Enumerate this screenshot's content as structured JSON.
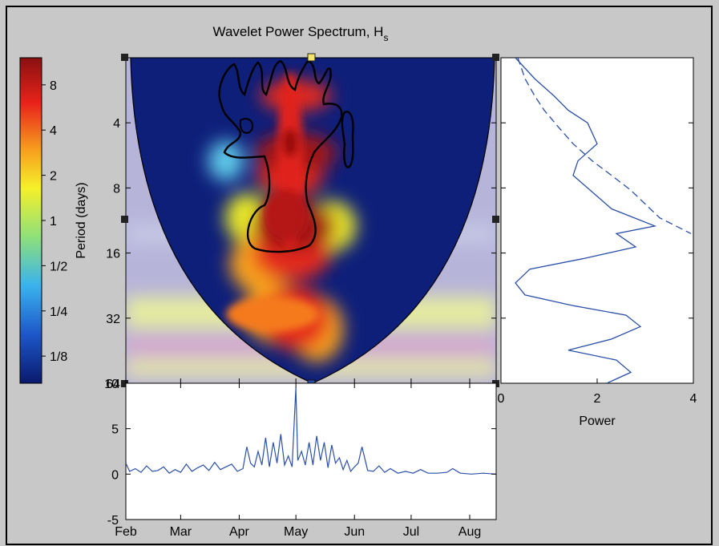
{
  "figure": {
    "title_main": "Wavelet Power Spectrum, H",
    "title_sub": "s",
    "background": "#c8c8c8",
    "line_color": "#2b4fa8"
  },
  "chart_data": [
    {
      "type": "heatmap",
      "title": "Wavelet Power Spectrum, Hs",
      "ylabel": "Period (days)",
      "y_scale": "log2",
      "y_reversed": true,
      "yticks": [
        "4",
        "8",
        "16",
        "32",
        "64"
      ],
      "ylim": [
        2,
        64
      ],
      "colorbar": {
        "scale": "log2",
        "ticks": [
          "8",
          "4",
          "2",
          "1",
          "1/2",
          "1/4",
          "1/8"
        ],
        "colors": [
          "#0a1a6e",
          "#1d56c8",
          "#3ab3ee",
          "#8fe07a",
          "#f6f02a",
          "#f79c1e",
          "#e8231b",
          "#8a1010"
        ]
      },
      "cone_of_influence": true,
      "significance_contour": true,
      "blobs": [
        {
          "date": "2008-04-29",
          "period": 16,
          "power": 7
        },
        {
          "date": "2008-04-30",
          "period": 12,
          "power": 9
        },
        {
          "date": "2008-05-01",
          "period": 5.5,
          "power": 8
        },
        {
          "date": "2008-05-01",
          "period": 3,
          "power": 5
        },
        {
          "date": "2008-04-28",
          "period": 7,
          "power": 4
        },
        {
          "date": "2008-04-20",
          "period": 30,
          "power": 3
        },
        {
          "date": "2008-05-01",
          "period": 32,
          "power": 4
        },
        {
          "date": "2008-05-12",
          "period": 36,
          "power": 2
        },
        {
          "date": "2008-04-10",
          "period": 18,
          "power": 2
        },
        {
          "date": "2008-05-20",
          "period": 12,
          "power": 1.5
        },
        {
          "date": "2008-04-05",
          "period": 11,
          "power": 1
        },
        {
          "date": "2008-03-25",
          "period": 6,
          "power": 0.5
        }
      ]
    },
    {
      "type": "line",
      "title": "",
      "xlabel": "Power",
      "ylabel": "",
      "xlim": [
        0,
        4
      ],
      "xticks": [
        "0",
        "2",
        "4"
      ],
      "y_scale": "log2",
      "series": [
        {
          "style": "solid",
          "x": [
            0.3,
            0.7,
            1.1,
            1.4,
            1.8,
            2.0,
            1.6,
            1.5,
            1.8,
            2.3,
            3.2,
            2.4,
            2.8,
            1.7,
            0.6,
            0.3,
            0.5,
            1.5,
            2.6,
            2.9,
            2.3,
            1.4,
            2.4,
            2.7,
            2.2
          ],
          "y": [
            2,
            2.5,
            3,
            3.5,
            4,
            5,
            6,
            7,
            8,
            10,
            12,
            13,
            15,
            17,
            19,
            22,
            25,
            28,
            31,
            35,
            40,
            45,
            50,
            57,
            64
          ]
        },
        {
          "style": "dashed",
          "x": [
            0.35,
            0.5,
            0.7,
            0.9,
            1.2,
            1.5,
            1.9,
            2.3,
            2.7,
            3.0,
            3.3,
            3.95
          ],
          "y": [
            2,
            2.5,
            3,
            3.5,
            4.2,
            5,
            6,
            7,
            8.2,
            9.5,
            11,
            13
          ]
        }
      ]
    },
    {
      "type": "line",
      "title": "",
      "xlabel": "",
      "ylabel": "",
      "ylim": [
        -5,
        10
      ],
      "yticks": [
        "10",
        "5",
        "0",
        "-5"
      ],
      "xticks": [
        "Feb",
        "Mar",
        "Apr",
        "May",
        "Jun",
        "Jul",
        "Aug"
      ],
      "xlim": [
        "2008-02-01",
        "2008-08-15"
      ],
      "series": [
        {
          "dates": [
            "2008-02-01",
            "2008-02-03",
            "2008-02-06",
            "2008-02-09",
            "2008-02-12",
            "2008-02-15",
            "2008-02-18",
            "2008-02-21",
            "2008-02-24",
            "2008-02-27",
            "2008-03-01",
            "2008-03-04",
            "2008-03-07",
            "2008-03-10",
            "2008-03-13",
            "2008-03-16",
            "2008-03-19",
            "2008-03-22",
            "2008-03-25",
            "2008-03-28",
            "2008-03-31",
            "2008-04-03",
            "2008-04-05",
            "2008-04-07",
            "2008-04-09",
            "2008-04-11",
            "2008-04-13",
            "2008-04-15",
            "2008-04-17",
            "2008-04-19",
            "2008-04-21",
            "2008-04-23",
            "2008-04-25",
            "2008-04-27",
            "2008-04-29",
            "2008-05-01",
            "2008-05-02",
            "2008-05-04",
            "2008-05-06",
            "2008-05-08",
            "2008-05-10",
            "2008-05-12",
            "2008-05-14",
            "2008-05-16",
            "2008-05-18",
            "2008-05-20",
            "2008-05-22",
            "2008-05-24",
            "2008-05-26",
            "2008-05-28",
            "2008-05-30",
            "2008-06-01",
            "2008-06-03",
            "2008-06-05",
            "2008-06-08",
            "2008-06-11",
            "2008-06-14",
            "2008-06-17",
            "2008-06-20",
            "2008-06-24",
            "2008-06-28",
            "2008-07-02",
            "2008-07-06",
            "2008-07-10",
            "2008-07-15",
            "2008-07-20",
            "2008-07-23",
            "2008-07-27",
            "2008-08-02",
            "2008-08-08",
            "2008-08-15"
          ],
          "values": [
            1.2,
            0.3,
            0.6,
            0.2,
            0.9,
            0.3,
            0.4,
            0.8,
            0.1,
            0.5,
            0.2,
            1.1,
            0.3,
            0.7,
            1.0,
            0.4,
            1.3,
            0.5,
            0.8,
            1.1,
            0.3,
            0.6,
            3.0,
            1.2,
            0.8,
            2.5,
            1.0,
            4.0,
            0.8,
            3.5,
            1.2,
            4.4,
            1.0,
            2.0,
            0.8,
            9.5,
            1.5,
            2.5,
            1.0,
            3.5,
            1.0,
            4.2,
            1.5,
            3.5,
            0.7,
            3.2,
            1.2,
            1.8,
            0.5,
            1.5,
            0.3,
            0.8,
            1.2,
            3.0,
            0.4,
            0.3,
            0.9,
            0.2,
            0.6,
            0.1,
            0.3,
            0.1,
            0.5,
            0.1,
            0.1,
            0.2,
            0.6,
            0.1,
            0.0,
            0.1,
            0.0
          ]
        }
      ]
    }
  ]
}
